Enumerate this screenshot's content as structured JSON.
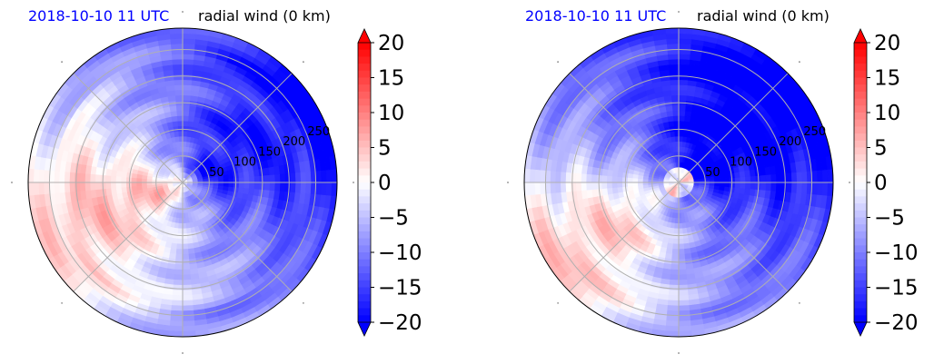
{
  "chart_data": [
    {
      "type": "heatmap",
      "projection": "polar",
      "date_label": "2018-10-10 11 UTC",
      "variable_label": "radial wind (0 km)",
      "radial_tick_labels": [
        "50",
        "100",
        "150",
        "200",
        "250"
      ],
      "radial_ticks": [
        50,
        100,
        150,
        200,
        250
      ],
      "rlim": [
        0,
        290
      ],
      "angular_gridlines_deg": [
        0,
        45,
        90,
        135,
        180,
        225,
        270,
        315
      ],
      "grid": true,
      "colormap": "bwr",
      "colorbar": {
        "range": [
          -20,
          20
        ],
        "tick_labels": [
          "20",
          "15",
          "10",
          "5",
          "0",
          "−5",
          "−10",
          "−15",
          "−20"
        ],
        "ticks": [
          20,
          15,
          10,
          5,
          0,
          -5,
          -10,
          -15,
          -20
        ],
        "extend": "both"
      },
      "colors": {
        "neg": "#0000ff",
        "zero": "#ffffff",
        "pos": "#ff0000",
        "grid": "#b0b0b0",
        "title": "#0000ff"
      },
      "field_summary": "strong negative (inflow, ~-20) in north-east quadrant, positive (~+5) in south-west, weak near centre"
    },
    {
      "type": "heatmap",
      "projection": "polar",
      "date_label": "2018-10-10 11 UTC",
      "variable_label": "radial wind (0 km)",
      "radial_tick_labels": [
        "50",
        "100",
        "150",
        "200",
        "250"
      ],
      "radial_ticks": [
        50,
        100,
        150,
        200,
        250
      ],
      "rlim": [
        0,
        290
      ],
      "angular_gridlines_deg": [
        0,
        45,
        90,
        135,
        180,
        225,
        270,
        315
      ],
      "grid": true,
      "colormap": "bwr",
      "colorbar": {
        "range": [
          -20,
          20
        ],
        "tick_labels": [
          "20",
          "15",
          "10",
          "5",
          "0",
          "−5",
          "−10",
          "−15",
          "−20"
        ],
        "ticks": [
          20,
          15,
          10,
          5,
          0,
          -5,
          -10,
          -15,
          -20
        ],
        "extend": "both"
      },
      "colors": {
        "neg": "#0000ff",
        "zero": "#ffffff",
        "pos": "#ff0000",
        "grid": "#b0b0b0",
        "title": "#0000ff"
      },
      "field_summary": "very strong inflow (~-20) north and east, positive in south-west, eye ring near centre"
    }
  ]
}
